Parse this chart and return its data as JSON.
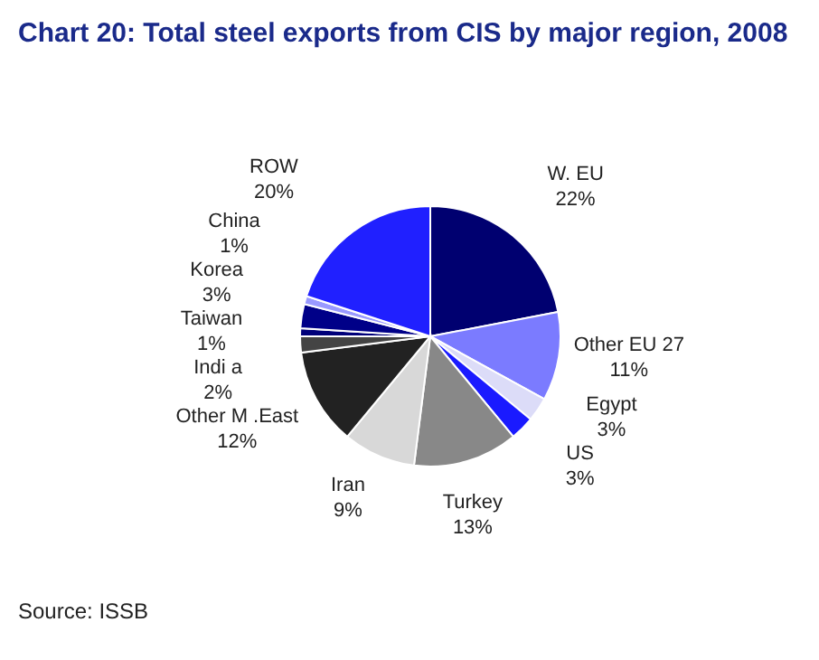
{
  "chart_data": {
    "type": "pie",
    "title": "Chart 20: Total steel exports from CIS by major region, 2008",
    "categories": [
      "W. EU",
      "Other EU 27",
      "Egypt",
      "US",
      "Turkey",
      "Iran",
      "Other M .East",
      "Indi a",
      "Taiwan",
      "Korea",
      "China",
      "ROW"
    ],
    "values": [
      22,
      11,
      3,
      3,
      13,
      9,
      12,
      2,
      1,
      3,
      1,
      20
    ],
    "value_labels": [
      "22%",
      "11%",
      "3%",
      "3%",
      "13%",
      "9%",
      "12%",
      "2%",
      "1%",
      "3%",
      "1%",
      "20%"
    ],
    "colors": [
      "#000070",
      "#7b7bff",
      "#dcdcf8",
      "#1a1aff",
      "#888888",
      "#d8d8d8",
      "#222222",
      "#444444",
      "#00007a",
      "#000088",
      "#9999ff",
      "#2020ff"
    ],
    "legend": false,
    "annotations": [
      "Source: ISSB"
    ]
  }
}
